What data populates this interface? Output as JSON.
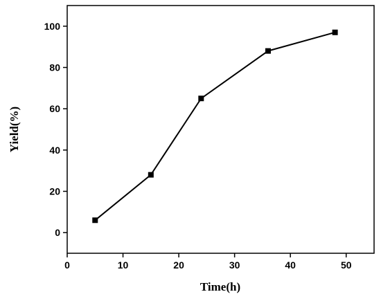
{
  "chart_data": {
    "type": "line",
    "xlabel": "Time(h)",
    "ylabel": "Yield(%)",
    "xlim": [
      0,
      55
    ],
    "ylim": [
      -10,
      110
    ],
    "xticks": [
      0,
      10,
      20,
      30,
      40,
      50
    ],
    "yticks": [
      0,
      20,
      40,
      60,
      80,
      100
    ],
    "grid": false,
    "series": [
      {
        "x": [
          5,
          15,
          24,
          36,
          48
        ],
        "y": [
          6,
          28,
          65,
          88,
          97
        ],
        "color": "#000000",
        "marker": "square"
      }
    ]
  }
}
